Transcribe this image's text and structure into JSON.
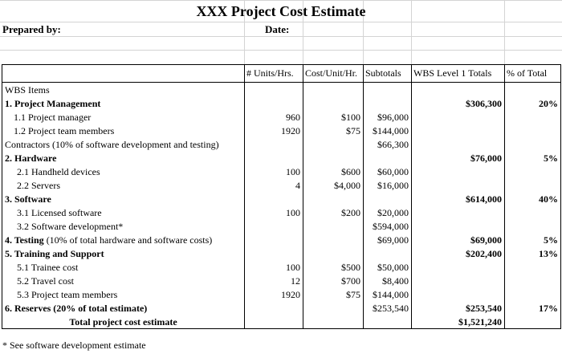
{
  "title": "XXX Project Cost Estimate",
  "prepared_by_label": "Prepared by:",
  "date_label": "Date:",
  "headers": {
    "units": "# Units/Hrs.",
    "cost": "Cost/Unit/Hr.",
    "subtotals": "Subtotals",
    "wbs_totals": "WBS Level 1 Totals",
    "pct": "% of Total"
  },
  "rows": [
    {
      "item": "WBS Items",
      "units": "",
      "cost": "",
      "subtotal": "",
      "total": "",
      "pct": ""
    },
    {
      "item": "1. Project Management",
      "units": "",
      "cost": "",
      "subtotal": "",
      "total": "$306,300",
      "pct": "20%"
    },
    {
      "item": "1.1 Project manager",
      "units": "960",
      "cost": "$100",
      "subtotal": "$96,000",
      "total": "",
      "pct": ""
    },
    {
      "item": "1.2 Project team members",
      "units": "1920",
      "cost": "$75",
      "subtotal": "$144,000",
      "total": "",
      "pct": ""
    },
    {
      "item": "Contractors (10% of software development and testing)",
      "units": "",
      "cost": "",
      "subtotal": "$66,300",
      "total": "",
      "pct": ""
    },
    {
      "item": "2. Hardware",
      "units": "",
      "cost": "",
      "subtotal": "",
      "total": "$76,000",
      "pct": "5%"
    },
    {
      "item": "2.1 Handheld devices",
      "units": "100",
      "cost": "$600",
      "subtotal": "$60,000",
      "total": "",
      "pct": ""
    },
    {
      "item": "2.2 Servers",
      "units": "4",
      "cost": "$4,000",
      "subtotal": "$16,000",
      "total": "",
      "pct": ""
    },
    {
      "item": "3. Software",
      "units": "",
      "cost": "",
      "subtotal": "",
      "total": "$614,000",
      "pct": "40%"
    },
    {
      "item": "3.1 Licensed software",
      "units": "100",
      "cost": "$200",
      "subtotal": "$20,000",
      "total": "",
      "pct": ""
    },
    {
      "item": "3.2 Software development*",
      "units": "",
      "cost": "",
      "subtotal": "$594,000",
      "total": "",
      "pct": ""
    },
    {
      "item": "4. Testing (10% of total hardware and software costs)",
      "units": "",
      "cost": "",
      "subtotal": "$69,000",
      "total": "$69,000",
      "pct": "5%"
    },
    {
      "item": "5. Training and Support",
      "units": "",
      "cost": "",
      "subtotal": "",
      "total": "$202,400",
      "pct": "13%"
    },
    {
      "item": "5.1 Trainee cost",
      "units": "100",
      "cost": "$500",
      "subtotal": "$50,000",
      "total": "",
      "pct": ""
    },
    {
      "item": "5.2 Travel cost",
      "units": "12",
      "cost": "$700",
      "subtotal": "$8,400",
      "total": "",
      "pct": ""
    },
    {
      "item": "5.3 Project team members",
      "units": "1920",
      "cost": "$75",
      "subtotal": "$144,000",
      "total": "",
      "pct": ""
    },
    {
      "item": "6. Reserves (20% of total estimate)",
      "units": "",
      "cost": "",
      "subtotal": "$253,540",
      "total": "$253,540",
      "pct": "17%"
    },
    {
      "item": "Total project cost estimate",
      "units": "",
      "cost": "",
      "subtotal": "",
      "total": "$1,521,240",
      "pct": ""
    }
  ],
  "footnote": "* See software development estimate"
}
